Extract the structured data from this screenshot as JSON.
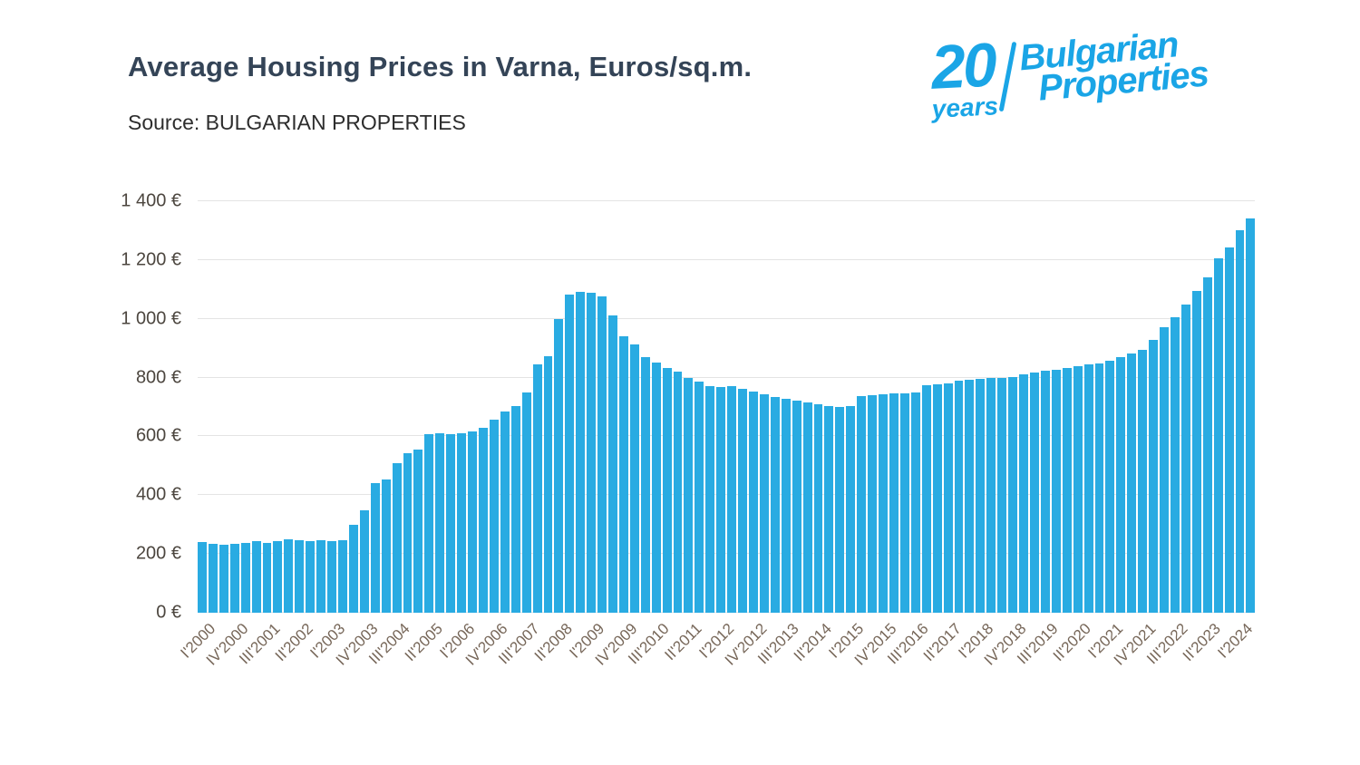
{
  "header": {
    "title": "Average Housing Prices in Varna, Euros/sq.m.",
    "source": "Source: BULGARIAN PROPERTIES"
  },
  "logo": {
    "number": "20",
    "years": "years",
    "brand_line1": "Bulgarian",
    "brand_line2": "Properties",
    "color": "#1aa5e6"
  },
  "chart_data": {
    "type": "bar",
    "title": "Average Housing Prices in Varna, Euros/sq.m.",
    "source": "Source: BULGARIAN PROPERTIES",
    "unit": "Euros/sq.m.",
    "bar_color": "#29abe2",
    "grid": true,
    "ylim": [
      0,
      1400
    ],
    "ytick_step": 200,
    "ytick_labels": [
      "0 €",
      "200 €",
      "400 €",
      "600 €",
      "800 €",
      "1 000 €",
      "1 200 €",
      "1 400 €"
    ],
    "label_every": 3,
    "x_labels_shown": [
      "I'2000",
      "IV'2000",
      "III'2001",
      "II'2002",
      "I'2003",
      "IV'2003",
      "III'2004",
      "II'2005",
      "I'2006",
      "IV'2006",
      "III'2007",
      "II'2008",
      "I'2009",
      "IV'2009",
      "III'2010",
      "II'2011",
      "I'2012",
      "IV'2012",
      "III'2013",
      "II'2014",
      "I'2015",
      "IV'2015",
      "III'2016",
      "II'2017",
      "I'2018",
      "IV'2018",
      "III'2019",
      "II'2020",
      "I'2021",
      "IV'2021",
      "III'2022",
      "II'2023",
      "I'2024"
    ],
    "categories": [
      "I'2000",
      "II'2000",
      "III'2000",
      "IV'2000",
      "I'2001",
      "II'2001",
      "III'2001",
      "IV'2001",
      "I'2002",
      "II'2002",
      "III'2002",
      "IV'2002",
      "I'2003",
      "II'2003",
      "III'2003",
      "IV'2003",
      "I'2004",
      "II'2004",
      "III'2004",
      "IV'2004",
      "I'2005",
      "II'2005",
      "III'2005",
      "IV'2005",
      "I'2006",
      "II'2006",
      "III'2006",
      "IV'2006",
      "I'2007",
      "II'2007",
      "III'2007",
      "IV'2007",
      "I'2008",
      "II'2008",
      "III'2008",
      "IV'2008",
      "I'2009",
      "II'2009",
      "III'2009",
      "IV'2009",
      "I'2010",
      "II'2010",
      "III'2010",
      "IV'2010",
      "I'2011",
      "II'2011",
      "III'2011",
      "IV'2011",
      "I'2012",
      "II'2012",
      "III'2012",
      "IV'2012",
      "I'2013",
      "II'2013",
      "III'2013",
      "IV'2013",
      "I'2014",
      "II'2014",
      "III'2014",
      "IV'2014",
      "I'2015",
      "II'2015",
      "III'2015",
      "IV'2015",
      "I'2016",
      "II'2016",
      "III'2016",
      "IV'2016",
      "I'2017",
      "II'2017",
      "III'2017",
      "IV'2017",
      "I'2018",
      "II'2018",
      "III'2018",
      "IV'2018",
      "I'2019",
      "II'2019",
      "III'2019",
      "IV'2019",
      "I'2020",
      "II'2020",
      "III'2020",
      "IV'2020",
      "I'2021",
      "II'2021",
      "III'2021",
      "IV'2021",
      "I'2022",
      "II'2022",
      "III'2022",
      "IV'2022",
      "I'2023",
      "II'2023",
      "III'2023",
      "IV'2023",
      "I'2024",
      "II'2024"
    ],
    "values": [
      240,
      233,
      230,
      234,
      239,
      244,
      236,
      245,
      249,
      246,
      243,
      247,
      244,
      248,
      300,
      350,
      440,
      452,
      510,
      542,
      556,
      608,
      612,
      607,
      612,
      618,
      630,
      656,
      684,
      704,
      748,
      845,
      872,
      1000,
      1082,
      1092,
      1088,
      1075,
      1010,
      940,
      912,
      870,
      850,
      832,
      820,
      800,
      786,
      772,
      768,
      770,
      762,
      752,
      742,
      735,
      728,
      722,
      716,
      710,
      704,
      700,
      703,
      738,
      741,
      743,
      745,
      746,
      750,
      775,
      778,
      781,
      790,
      793,
      795,
      798,
      800,
      803,
      812,
      818,
      823,
      828,
      833,
      838,
      844,
      848,
      858,
      870,
      882,
      895,
      928,
      970,
      1005,
      1048,
      1095,
      1140,
      1205,
      1243,
      1302,
      1340
    ]
  }
}
